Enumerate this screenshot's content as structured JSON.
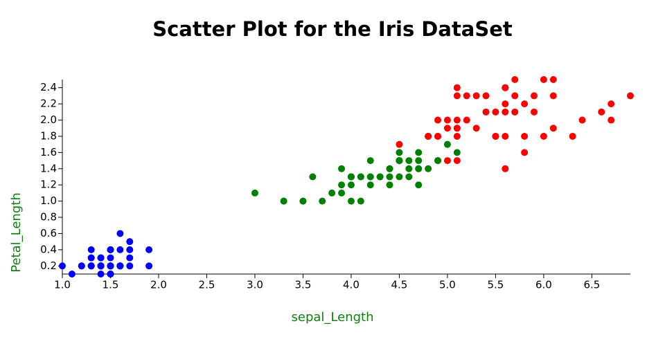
{
  "chart_data": {
    "type": "scatter",
    "title": "Scatter Plot for the Iris DataSet",
    "x_label": "sepal_Length",
    "y_label": "Petal_Length",
    "xlim": [
      1.0,
      6.9
    ],
    "ylim": [
      0.1,
      2.5
    ],
    "xticks": [
      {
        "value": 1,
        "label": "1.0"
      },
      1.5,
      {
        "value": 2,
        "label": "2.0"
      },
      2.5,
      {
        "value": 3,
        "label": "3.0"
      },
      3.5,
      {
        "value": 4,
        "label": "4.0"
      },
      4.5,
      {
        "value": 5,
        "label": "5.0"
      },
      5.5,
      {
        "value": 6,
        "label": "6.0"
      },
      6.5
    ],
    "yticks": [
      0.2,
      0.4,
      0.6,
      0.8,
      {
        "value": 1,
        "label": "1.0"
      },
      1.2,
      1.4,
      1.6,
      1.8,
      {
        "value": 2,
        "label": "2.0"
      },
      2.2,
      2.4
    ],
    "series": [
      {
        "color": "#0000ff",
        "x": [
          1.4,
          1.4,
          1.3,
          1.5,
          1.4,
          1.7,
          1.4,
          1.5,
          1.4,
          1.5,
          1.5,
          1.6,
          1.4,
          1.1,
          1.2,
          1.5,
          1.3,
          1.4,
          1.7,
          1.5,
          1.7,
          1.5,
          1.0,
          1.7,
          1.9,
          1.6,
          1.6,
          1.5,
          1.4,
          1.6,
          1.6,
          1.5,
          1.5,
          1.4,
          1.5,
          1.2,
          1.3,
          1.5,
          1.3,
          1.5,
          1.3,
          1.3,
          1.3,
          1.6,
          1.9,
          1.4,
          1.6,
          1.4,
          1.5,
          1.4
        ],
        "values": [
          0.2,
          0.2,
          0.2,
          0.2,
          0.2,
          0.4,
          0.3,
          0.2,
          0.2,
          0.1,
          0.2,
          0.2,
          0.1,
          0.1,
          0.2,
          0.4,
          0.4,
          0.3,
          0.3,
          0.3,
          0.2,
          0.4,
          0.2,
          0.5,
          0.2,
          0.2,
          0.4,
          0.2,
          0.2,
          0.2,
          0.2,
          0.4,
          0.1,
          0.2,
          0.2,
          0.2,
          0.2,
          0.1,
          0.2,
          0.2,
          0.3,
          0.3,
          0.2,
          0.6,
          0.4,
          0.3,
          0.2,
          0.2,
          0.2,
          0.2
        ]
      },
      {
        "color": "#008000",
        "x": [
          4.7,
          4.5,
          4.9,
          4.0,
          4.6,
          4.5,
          4.7,
          3.3,
          4.6,
          3.9,
          3.5,
          4.2,
          4.0,
          4.7,
          3.6,
          4.4,
          4.5,
          4.1,
          4.5,
          3.9,
          4.8,
          4.0,
          4.9,
          4.7,
          4.3,
          4.4,
          4.8,
          5.0,
          4.5,
          3.5,
          3.8,
          3.7,
          3.9,
          5.1,
          4.5,
          4.5,
          4.7,
          4.4,
          4.1,
          4.0,
          4.4,
          4.6,
          4.0,
          3.3,
          4.2,
          4.2,
          4.2,
          4.3,
          3.0,
          4.1
        ],
        "values": [
          1.4,
          1.5,
          1.5,
          1.3,
          1.5,
          1.3,
          1.6,
          1.0,
          1.3,
          1.4,
          1.0,
          1.5,
          1.0,
          1.4,
          1.3,
          1.4,
          1.5,
          1.0,
          1.5,
          1.1,
          1.8,
          1.3,
          1.5,
          1.2,
          1.3,
          1.4,
          1.4,
          1.7,
          1.5,
          1.0,
          1.1,
          1.0,
          1.2,
          1.6,
          1.5,
          1.6,
          1.5,
          1.3,
          1.3,
          1.3,
          1.2,
          1.4,
          1.2,
          1.0,
          1.3,
          1.2,
          1.3,
          1.3,
          1.1,
          1.3
        ]
      },
      {
        "color": "#ff0000",
        "x": [
          6.0,
          5.1,
          5.9,
          5.6,
          5.8,
          6.6,
          4.5,
          6.3,
          5.8,
          6.1,
          5.1,
          5.3,
          5.5,
          5.0,
          5.1,
          5.3,
          5.5,
          6.7,
          6.9,
          5.0,
          5.7,
          4.9,
          6.7,
          4.9,
          5.7,
          6.0,
          4.8,
          4.9,
          5.6,
          5.8,
          6.1,
          6.4,
          5.6,
          5.1,
          5.6,
          6.1,
          5.6,
          5.5,
          4.8,
          5.4,
          5.6,
          5.1,
          5.1,
          5.9,
          5.7,
          5.2,
          5.0,
          5.2,
          5.4,
          5.1
        ],
        "values": [
          2.5,
          1.9,
          2.1,
          1.8,
          2.2,
          2.1,
          1.7,
          1.8,
          1.8,
          2.5,
          2.0,
          1.9,
          2.1,
          2.0,
          2.4,
          2.3,
          1.8,
          2.2,
          2.3,
          1.5,
          2.3,
          2.0,
          2.0,
          1.8,
          2.1,
          1.8,
          1.8,
          1.8,
          2.1,
          1.6,
          1.9,
          2.0,
          2.2,
          1.5,
          1.4,
          2.3,
          2.4,
          1.8,
          1.8,
          2.1,
          2.4,
          2.3,
          1.9,
          2.3,
          2.5,
          2.3,
          1.9,
          2.0,
          2.3,
          1.8
        ]
      }
    ]
  }
}
